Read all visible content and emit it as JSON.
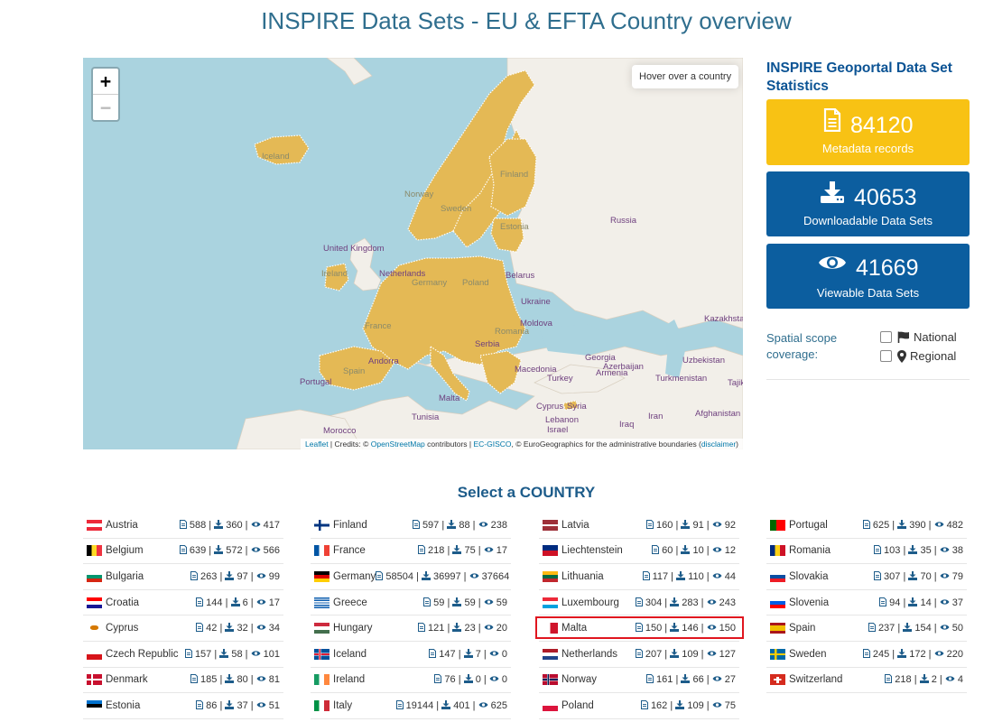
{
  "page_title": "INSPIRE Data Sets - EU & EFTA Country overview",
  "map": {
    "zoom_in": "+",
    "zoom_out": "−",
    "info": "Hover over a country",
    "attribution": {
      "leaflet": "Leaflet",
      "credits": " | Credits: © ",
      "osm": "OpenStreetMap",
      "contributors": " contributors | ",
      "gisco": "EC-GISCO",
      "eurogeo": ", © EuroGeographics for the administrative boundaries (",
      "disclaimer": "disclaimer",
      "close": ")"
    },
    "labels": [
      {
        "text": "Iceland",
        "class": "light"
      },
      {
        "text": "Finland",
        "class": "light"
      },
      {
        "text": "Norway",
        "class": "light"
      },
      {
        "text": "Sweden",
        "class": "light"
      },
      {
        "text": "Estonia",
        "class": "light"
      },
      {
        "text": "Russia",
        "class": ""
      },
      {
        "text": "United Kingdom",
        "class": ""
      },
      {
        "text": "Ireland",
        "class": "light"
      },
      {
        "text": "Netherlands",
        "class": ""
      },
      {
        "text": "Germany",
        "class": "light"
      },
      {
        "text": "Poland",
        "class": "light"
      },
      {
        "text": "Belarus",
        "class": ""
      },
      {
        "text": "Ukraine",
        "class": ""
      },
      {
        "text": "France",
        "class": "light"
      },
      {
        "text": "Moldova",
        "class": ""
      },
      {
        "text": "Romania",
        "class": "light"
      },
      {
        "text": "Kazakhstan",
        "class": ""
      },
      {
        "text": "Serbia",
        "class": ""
      },
      {
        "text": "Portugal",
        "class": ""
      },
      {
        "text": "Spain",
        "class": "light"
      },
      {
        "text": "Andorra",
        "class": ""
      },
      {
        "text": "Macedonia",
        "class": ""
      },
      {
        "text": "Georgia",
        "class": ""
      },
      {
        "text": "Azerbaijan",
        "class": ""
      },
      {
        "text": "Armenia",
        "class": ""
      },
      {
        "text": "Uzbekistan",
        "class": ""
      },
      {
        "text": "Turkey",
        "class": ""
      },
      {
        "text": "Turkmenistan",
        "class": ""
      },
      {
        "text": "Tajik",
        "class": ""
      },
      {
        "text": "Malta",
        "class": ""
      },
      {
        "text": "Tunisia",
        "class": ""
      },
      {
        "text": "Cyprus",
        "class": ""
      },
      {
        "text": "Syria",
        "class": ""
      },
      {
        "text": "Lebanon",
        "class": ""
      },
      {
        "text": "Israel",
        "class": ""
      },
      {
        "text": "Iraq",
        "class": ""
      },
      {
        "text": "Iran",
        "class": ""
      },
      {
        "text": "Afghanistan",
        "class": ""
      },
      {
        "text": "Morocco",
        "class": ""
      }
    ]
  },
  "stats": {
    "title": "INSPIRE Geoportal Data Set Statistics",
    "metadata": {
      "value": "84120",
      "label": "Metadata records",
      "color": "#f8c214"
    },
    "downloadable": {
      "value": "40653",
      "label": "Downloadable Data Sets",
      "color": "#0c5e9f"
    },
    "viewable": {
      "value": "41669",
      "label": "Viewable Data Sets",
      "color": "#0c5e9f"
    }
  },
  "scope": {
    "label": "Spatial scope coverage:",
    "national": "National",
    "regional": "Regional"
  },
  "select_title": "Select a COUNTRY",
  "highlight_color": "#e0161f",
  "countries": [
    [
      {
        "name": "Austria",
        "m": "588",
        "d": "360",
        "v": "417",
        "flag": "austria"
      },
      {
        "name": "Belgium",
        "m": "639",
        "d": "572",
        "v": "566",
        "flag": "belgium"
      },
      {
        "name": "Bulgaria",
        "m": "263",
        "d": "97",
        "v": "99",
        "flag": "bulgaria"
      },
      {
        "name": "Croatia",
        "m": "144",
        "d": "6",
        "v": "17",
        "flag": "croatia"
      },
      {
        "name": "Cyprus",
        "m": "42",
        "d": "32",
        "v": "34",
        "flag": "cyprus"
      },
      {
        "name": "Czech Republic",
        "m": "157",
        "d": "58",
        "v": "101",
        "flag": "czech"
      },
      {
        "name": "Denmark",
        "m": "185",
        "d": "80",
        "v": "81",
        "flag": "denmark"
      },
      {
        "name": "Estonia",
        "m": "86",
        "d": "37",
        "v": "51",
        "flag": "estonia"
      }
    ],
    [
      {
        "name": "Finland",
        "m": "597",
        "d": "88",
        "v": "238",
        "flag": "finland"
      },
      {
        "name": "France",
        "m": "218",
        "d": "75",
        "v": "17",
        "flag": "france"
      },
      {
        "name": "Germany",
        "m": "58504",
        "d": "36997",
        "v": "37664",
        "flag": "germany"
      },
      {
        "name": "Greece",
        "m": "59",
        "d": "59",
        "v": "59",
        "flag": "greece"
      },
      {
        "name": "Hungary",
        "m": "121",
        "d": "23",
        "v": "20",
        "flag": "hungary"
      },
      {
        "name": "Iceland",
        "m": "147",
        "d": "7",
        "v": "0",
        "flag": "iceland"
      },
      {
        "name": "Ireland",
        "m": "76",
        "d": "0",
        "v": "0",
        "flag": "ireland"
      },
      {
        "name": "Italy",
        "m": "19144",
        "d": "401",
        "v": "625",
        "flag": "italy"
      }
    ],
    [
      {
        "name": "Latvia",
        "m": "160",
        "d": "91",
        "v": "92",
        "flag": "latvia"
      },
      {
        "name": "Liechtenstein",
        "m": "60",
        "d": "10",
        "v": "12",
        "flag": "liechtenstein"
      },
      {
        "name": "Lithuania",
        "m": "117",
        "d": "110",
        "v": "44",
        "flag": "lithuania"
      },
      {
        "name": "Luxembourg",
        "m": "304",
        "d": "283",
        "v": "243",
        "flag": "luxembourg"
      },
      {
        "name": "Malta",
        "m": "150",
        "d": "146",
        "v": "150",
        "flag": "malta"
      },
      {
        "name": "Netherlands",
        "m": "207",
        "d": "109",
        "v": "127",
        "flag": "netherlands"
      },
      {
        "name": "Norway",
        "m": "161",
        "d": "66",
        "v": "27",
        "flag": "norway"
      },
      {
        "name": "Poland",
        "m": "162",
        "d": "109",
        "v": "75",
        "flag": "poland"
      }
    ],
    [
      {
        "name": "Portugal",
        "m": "625",
        "d": "390",
        "v": "482",
        "flag": "portugal"
      },
      {
        "name": "Romania",
        "m": "103",
        "d": "35",
        "v": "38",
        "flag": "romania"
      },
      {
        "name": "Slovakia",
        "m": "307",
        "d": "70",
        "v": "79",
        "flag": "slovakia"
      },
      {
        "name": "Slovenia",
        "m": "94",
        "d": "14",
        "v": "37",
        "flag": "slovenia"
      },
      {
        "name": "Spain",
        "m": "237",
        "d": "154",
        "v": "50",
        "flag": "spain"
      },
      {
        "name": "Sweden",
        "m": "245",
        "d": "172",
        "v": "220",
        "flag": "sweden"
      },
      {
        "name": "Switzerland",
        "m": "218",
        "d": "2",
        "v": "4",
        "flag": "switzerland"
      }
    ]
  ]
}
